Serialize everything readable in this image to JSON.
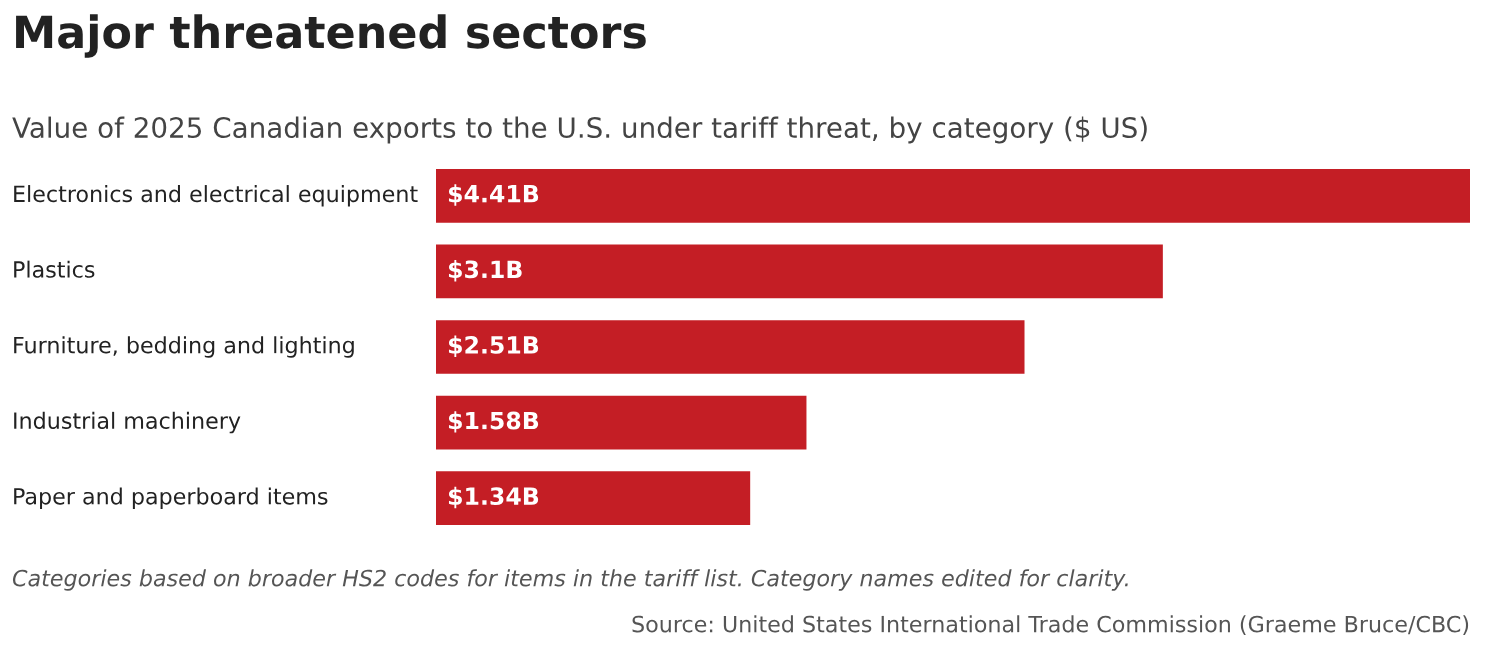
{
  "chart_data": {
    "type": "bar",
    "orientation": "horizontal",
    "title": "Major threatened sectors",
    "subtitle": "Value of 2025 Canadian exports to the U.S. under tariff threat, by category ($ US)",
    "categories": [
      "Electronics and electrical equipment",
      "Plastics",
      "Furniture, bedding and lighting",
      "Industrial machinery",
      "Paper and paperboard items"
    ],
    "values": [
      4.41,
      3.1,
      2.51,
      1.58,
      1.34
    ],
    "value_labels": [
      "$4.41B",
      "$3.1B",
      "$2.51B",
      "$1.58B",
      "$1.34B"
    ],
    "xlim": [
      0,
      4.41
    ],
    "color": "#c41e25",
    "annotations": [
      "Categories based on broader HS2 codes for items in the tariff list. Category names edited for clarity.",
      "Source: United States International Trade Commission (Graeme Bruce/CBC)"
    ]
  }
}
